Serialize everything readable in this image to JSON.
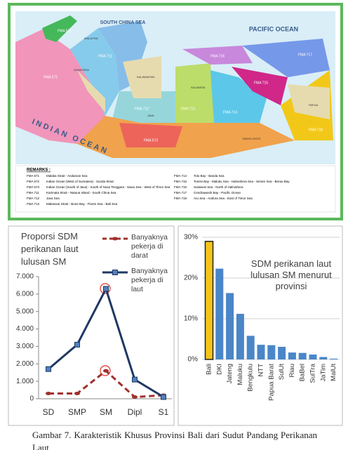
{
  "map": {
    "labels": [
      "SOUTH CHINA SEA",
      "PACIFIC OCEAN",
      "INDIAN OCEAN",
      "MALAYSIA",
      "SUMATERA",
      "KALIMANTAN",
      "SULAWESI",
      "JAVA",
      "PAPUA",
      "TIMOR LESTE",
      "FMA 571",
      "FMA 572",
      "FMA 573",
      "FMA 711",
      "FMA 712",
      "FMA 713",
      "FMA 714",
      "FMA 715",
      "FMA 716",
      "FMA 717",
      "FMA 718"
    ],
    "remarks_title": "REMARKS :",
    "remarks": [
      {
        "code": "FMA 571",
        "text": "Malaka Strait - Andaman Sea"
      },
      {
        "code": "FMA 572",
        "text": "Indian Ocean (West of Sumatera) - Sunda Strait"
      },
      {
        "code": "FMA 573",
        "text": "Indian Ocean (South of Java) - South of Nusa Tenggara - Sawu Sea - West of Timor Sea"
      },
      {
        "code": "FMA 711",
        "text": "Karimata Strait - Natuna Island - South China Sea"
      },
      {
        "code": "FMA 712",
        "text": "Java Sea"
      },
      {
        "code": "FMA 713",
        "text": "Makassar Strait - Bone Bay - Flores Sea - Bali Sea"
      },
      {
        "code": "FMA 714",
        "text": "Tolo Bay - Banda Sea"
      },
      {
        "code": "FMA 715",
        "text": "Tomini Bay - Maluku Sea - Halmahera Sea - Seram Sea - Berau Bay"
      },
      {
        "code": "FMA 716",
        "text": "Sulawesi Sea - North of Halmahera"
      },
      {
        "code": "FMA 717",
        "text": "Cendrawasih Bay - Pacific Ocean"
      },
      {
        "code": "FMA 718",
        "text": "Aru Sea - Arafura Sea - East of Timor Sea"
      }
    ]
  },
  "chart_data": [
    {
      "type": "line",
      "title": "Proporsi SDM perikanan laut lulusan SM",
      "categories": [
        "SD",
        "SMP",
        "SM",
        "Dipl",
        "S1"
      ],
      "series": [
        {
          "name": "Banyaknya pekerja di darat",
          "color": "#a0302c",
          "values": [
            300,
            300,
            1600,
            100,
            200
          ]
        },
        {
          "name": "Banyaknya pekerja di laut",
          "color": "#1f3864",
          "values": [
            1700,
            3100,
            6300,
            1100,
            100
          ]
        }
      ],
      "ylim": [
        0,
        7000
      ],
      "yticks": [
        0,
        {
          "value": 1000,
          "label": "1.000"
        },
        {
          "value": 2000,
          "label": "2.000"
        },
        {
          "value": 3000,
          "label": "3.000"
        },
        {
          "value": 4000,
          "label": "4.000"
        },
        {
          "value": 5000,
          "label": "5.000"
        },
        {
          "value": 6000,
          "label": "6.000"
        },
        {
          "value": 7000,
          "label": "7.000"
        }
      ]
    },
    {
      "type": "bar",
      "title": "SDM perikanan laut lulusan SM menurut provinsi",
      "categories": [
        "Bali",
        "DKI",
        "Jateng",
        "Maluku",
        "Bengkulu",
        "NTT",
        "Papua Barat",
        "SulUt",
        "Riau",
        "BaBel",
        "SulTra",
        "JaTim",
        "MalUt"
      ],
      "values": [
        29,
        22.3,
        16.3,
        11.2,
        5.8,
        3.6,
        3.5,
        3.1,
        1.7,
        1.6,
        1.2,
        0.6,
        0.2
      ],
      "colors": [
        "#f5c518",
        "#4a86c8",
        "#4a86c8",
        "#4a86c8",
        "#4a86c8",
        "#4a86c8",
        "#4a86c8",
        "#4a86c8",
        "#4a86c8",
        "#4a86c8",
        "#4a86c8",
        "#4a86c8",
        "#4a86c8"
      ],
      "ylim": [
        0,
        30
      ],
      "yticks": [
        {
          "value": 0,
          "label": "0%"
        },
        {
          "value": 10,
          "label": "10%"
        },
        {
          "value": 20,
          "label": "20%"
        },
        {
          "value": 30,
          "label": "30%"
        }
      ],
      "grid": true
    }
  ],
  "caption": "Gambar 7. Karakteristik Khusus Provinsi Bali dari Sudut Pandang Perikanan Laut"
}
